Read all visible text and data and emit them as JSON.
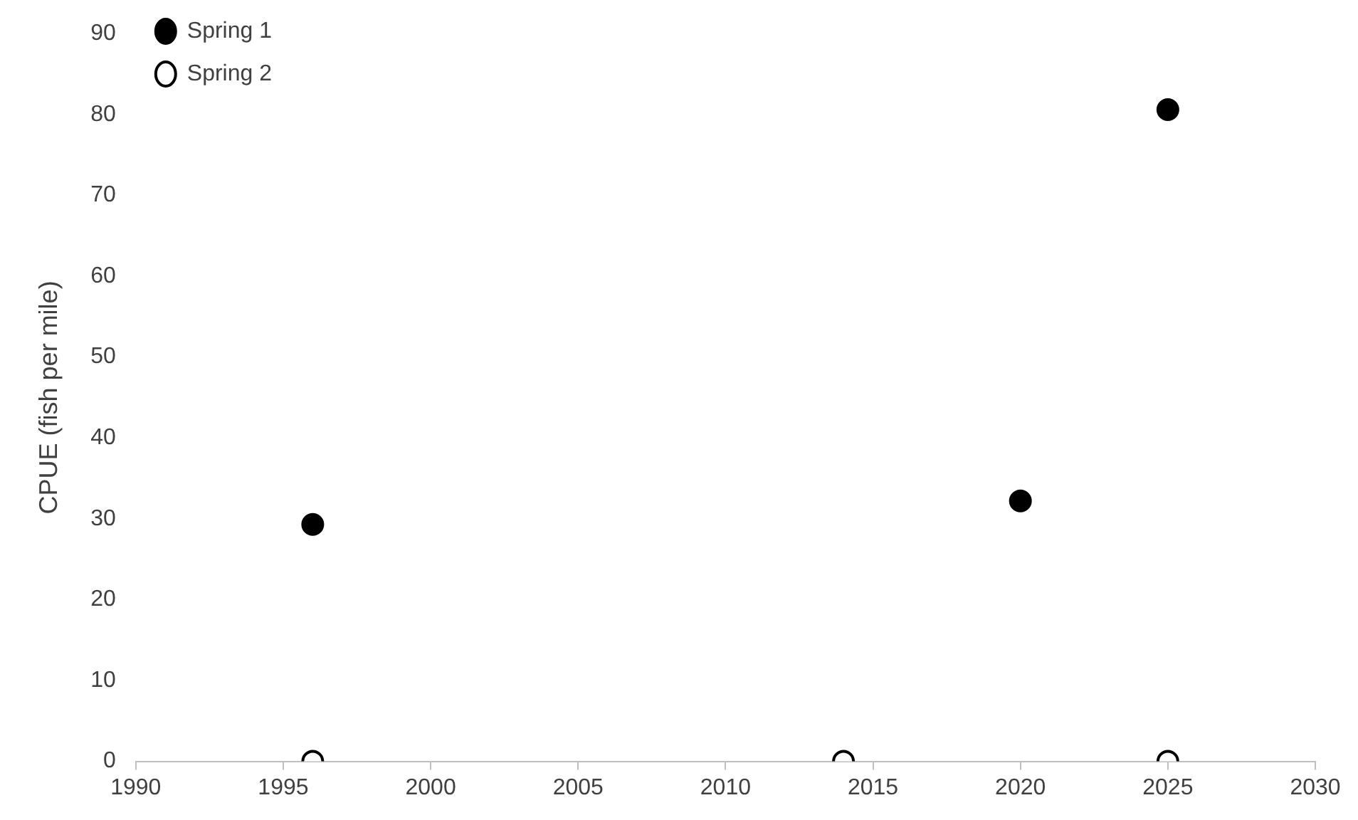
{
  "chart_data": {
    "type": "scatter",
    "ylabel": "CPUE (fish per mile)",
    "series": [
      {
        "name": "Spring 1",
        "color": "#000000",
        "x": [
          1996,
          2020,
          2025
        ],
        "values": [
          29.3,
          32.2,
          80.6
        ]
      },
      {
        "name": "Spring 2",
        "color": "#ffffff",
        "x": [
          1996,
          2014,
          2025
        ],
        "values": [
          0,
          0,
          0
        ]
      }
    ],
    "xlim": [
      1990,
      2030
    ],
    "xticks": [
      1990,
      1995,
      2000,
      2005,
      2010,
      2015,
      2020,
      2025,
      2030
    ],
    "ylim": [
      0,
      90
    ],
    "yticks": [
      0,
      10,
      20,
      30,
      40,
      50,
      60,
      70,
      80,
      90
    ],
    "grid": false,
    "legend": "top left",
    "marker": "circle"
  }
}
